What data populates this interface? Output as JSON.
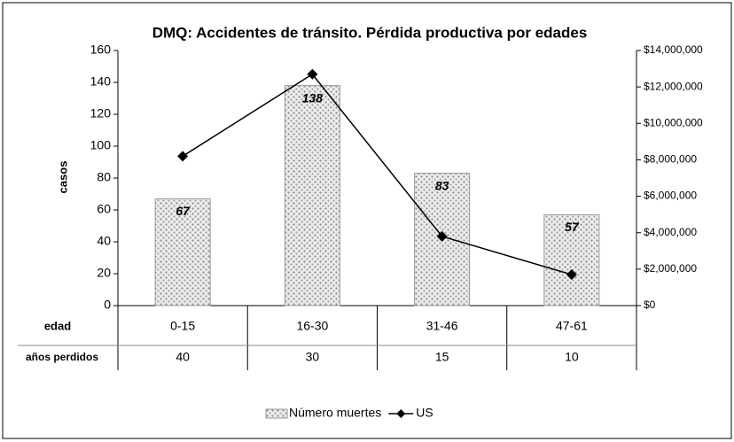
{
  "chart_data": {
    "type": "bar_line",
    "title": "DMQ: Accidentes de tránsito. Pérdida productiva por edades",
    "y_label": "casos",
    "categories": [
      "0-15",
      "16-30",
      "31-46",
      "47-61"
    ],
    "category_row_label": "edad",
    "years_lost_label": "años perdidos",
    "years_lost": [
      40,
      30,
      15,
      10
    ],
    "series": [
      {
        "name": "Número muertes",
        "type": "bar",
        "color": "#c8c8c8",
        "values": [
          67,
          138,
          83,
          57
        ]
      },
      {
        "name": "US",
        "type": "line",
        "axis": "y2",
        "color": "#000000",
        "values": [
          8200000,
          12700000,
          3800000,
          1700000
        ]
      }
    ],
    "ylim": [
      0,
      160
    ],
    "yticks": [
      0,
      20,
      40,
      60,
      80,
      100,
      120,
      140,
      160
    ],
    "y2lim": [
      0,
      14000000
    ],
    "y2ticks": [
      {
        "value": 0,
        "label": "$0"
      },
      {
        "value": 2000000,
        "label": "$2,000,000"
      },
      {
        "value": 4000000,
        "label": "$4,000,000"
      },
      {
        "value": 6000000,
        "label": "$6,000,000"
      },
      {
        "value": 8000000,
        "label": "$8,000,000"
      },
      {
        "value": 10000000,
        "label": "$10,000,000"
      },
      {
        "value": 12000000,
        "label": "$12,000,000"
      },
      {
        "value": 14000000,
        "label": "$14,000,000"
      }
    ],
    "legend": "bottom"
  }
}
